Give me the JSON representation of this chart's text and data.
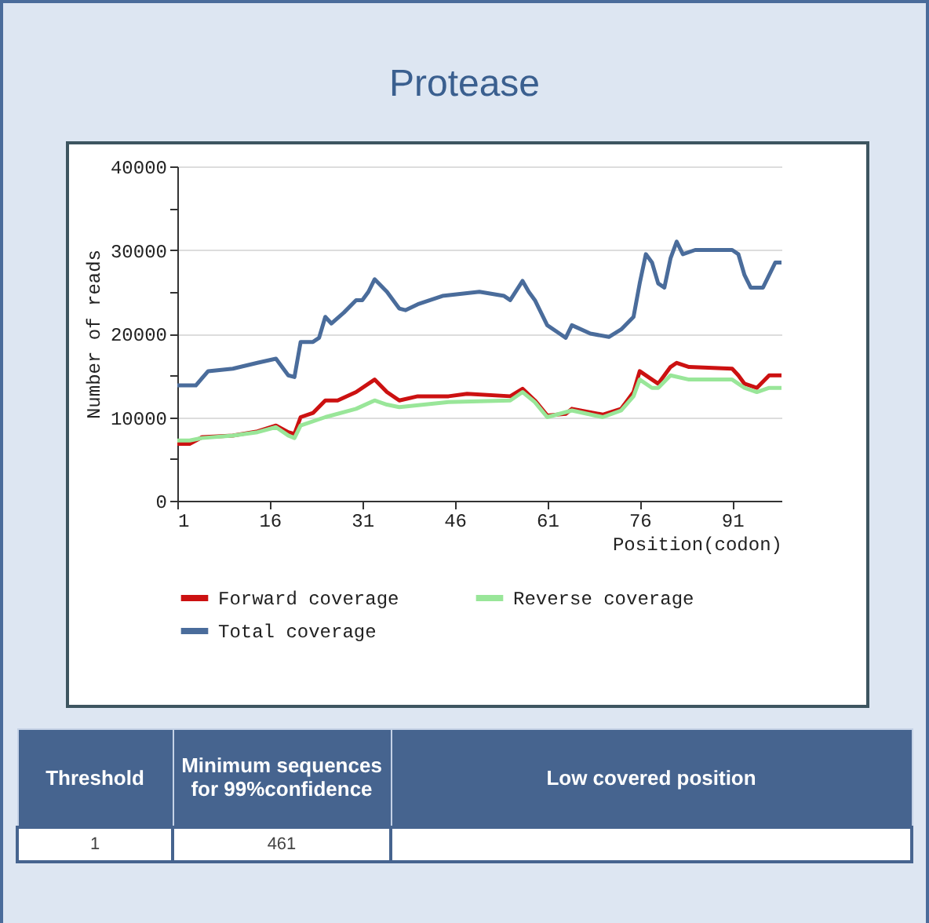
{
  "chart_data": {
    "type": "line",
    "title": "Protease",
    "xlabel": "Position(codon)",
    "ylabel": "Number of reads",
    "xlim": [
      1,
      99
    ],
    "xticks": [
      1,
      16,
      31,
      46,
      61,
      76,
      91
    ],
    "ylim": [
      0,
      40000
    ],
    "yticks": [
      0,
      {
        "value": 5000,
        "label": null
      },
      10000,
      {
        "value": 15000,
        "label": null
      },
      20000,
      {
        "value": 25000,
        "label": null
      },
      30000,
      {
        "value": 35000,
        "label": null
      },
      40000
    ],
    "grid": "y",
    "legend": "bottom",
    "line_style": "solid",
    "series": [
      {
        "name": "Forward coverage",
        "color": "#cc1111",
        "x": [
          1,
          3,
          5,
          10,
          14,
          17,
          19,
          20,
          21,
          23,
          25,
          27,
          30,
          33,
          35,
          37,
          40,
          45,
          48,
          55,
          57,
          59,
          61,
          64,
          65,
          70,
          73,
          75,
          76,
          78,
          79,
          81,
          82,
          84,
          91,
          92,
          93,
          95,
          97,
          99
        ],
        "values": [
          6800,
          6800,
          7600,
          7800,
          8300,
          9000,
          8200,
          8000,
          10000,
          10500,
          12000,
          12000,
          13000,
          14500,
          13000,
          12000,
          12500,
          12500,
          12800,
          12500,
          13400,
          12000,
          10200,
          10400,
          11000,
          10300,
          11000,
          13000,
          15500,
          14500,
          14000,
          16000,
          16500,
          16000,
          15800,
          15000,
          14000,
          13500,
          15000,
          15000
        ]
      },
      {
        "name": "Reverse coverage",
        "color": "#99e699",
        "x": [
          1,
          3,
          5,
          10,
          14,
          17,
          19,
          20,
          21,
          25,
          30,
          33,
          35,
          37,
          45,
          55,
          57,
          59,
          61,
          65,
          70,
          73,
          75,
          76,
          78,
          79,
          81,
          84,
          91,
          93,
          95,
          97,
          99
        ],
        "values": [
          7200,
          7200,
          7500,
          7800,
          8200,
          8800,
          7800,
          7500,
          9000,
          10000,
          11000,
          12000,
          11500,
          11200,
          11800,
          12000,
          13000,
          11800,
          10000,
          10800,
          10000,
          10800,
          12500,
          14500,
          13500,
          13500,
          15000,
          14500,
          14500,
          13500,
          13000,
          13500,
          13500
        ]
      },
      {
        "name": "Total coverage",
        "color": "#4a6c9b",
        "x": [
          1,
          4,
          6,
          10,
          14,
          17,
          19,
          20,
          21,
          23,
          24,
          25,
          26,
          28,
          30,
          31,
          32,
          33,
          35,
          37,
          38,
          40,
          44,
          50,
          54,
          55,
          57,
          58,
          59,
          61,
          63,
          64,
          65,
          68,
          71,
          73,
          75,
          76,
          77,
          78,
          79,
          80,
          81,
          82,
          83,
          85,
          91,
          92,
          93,
          94,
          96,
          97,
          98,
          99
        ],
        "values": [
          13800,
          13800,
          15500,
          15800,
          16500,
          17000,
          15000,
          14800,
          19000,
          19000,
          19500,
          22000,
          21200,
          22500,
          24000,
          24000,
          25000,
          26500,
          25000,
          23000,
          22800,
          23500,
          24500,
          25000,
          24500,
          24000,
          26300,
          25000,
          24000,
          21000,
          20000,
          19500,
          21000,
          20000,
          19600,
          20500,
          22000,
          26000,
          29500,
          28500,
          26000,
          25500,
          29000,
          31000,
          29500,
          30000,
          30000,
          29500,
          27000,
          25500,
          25500,
          27000,
          28500,
          28500
        ]
      }
    ],
    "annotations": [
      "Threshold",
      "Minimum sequences for 99%confidence",
      "Low covered position",
      "1",
      "461"
    ]
  }
}
